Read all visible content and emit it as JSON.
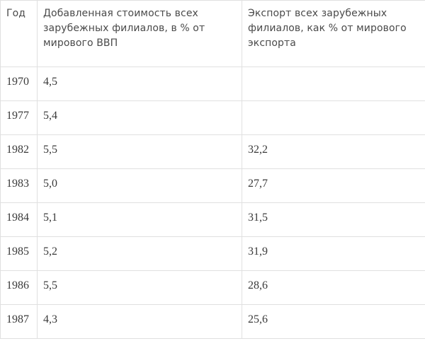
{
  "table": {
    "headers": [
      "Год",
      "Добавленная стоимость всех зарубежных филиалов, в % от мирового ВВП",
      "Экспорт всех зарубежных филиалов, как % от мирового экспорта"
    ],
    "rows": [
      [
        "1970",
        "4,5",
        ""
      ],
      [
        "1977",
        "5,4",
        ""
      ],
      [
        "1982",
        "5,5",
        "32,2"
      ],
      [
        "1983",
        "5,0",
        "27,7"
      ],
      [
        "1984",
        "5,1",
        "31,5"
      ],
      [
        "1985",
        "5,2",
        "31,9"
      ],
      [
        "1986",
        "5,5",
        "28,6"
      ],
      [
        "1987",
        "4,3",
        "25,6"
      ]
    ]
  }
}
